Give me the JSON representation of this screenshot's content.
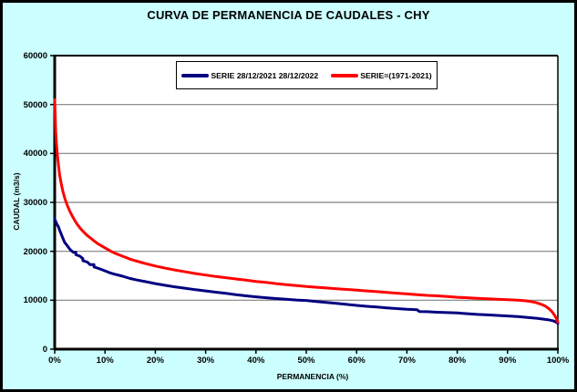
{
  "window": {
    "background_color": "#CCFFFF",
    "border_color": "#000000",
    "plot_background_color": "#FFFFFF",
    "gridline_color": "#808080"
  },
  "title": "CURVA DE PERMANENCIA DE CAUDALES - CHY",
  "legend": {
    "items": [
      {
        "label": "SERIE 28/12/2021 28/12/2022",
        "color": "#000080"
      },
      {
        "label": "SERIE=(1971-2021)",
        "color": "#FF0000"
      }
    ]
  },
  "axes": {
    "x_title": "PERMANENCIA (%)",
    "y_title": "CAUDAL (m3/s)"
  },
  "chart_data": {
    "type": "line",
    "title": "CURVA DE PERMANENCIA DE CAUDALES - CHY",
    "xlabel": "PERMANENCIA (%)",
    "ylabel": "CAUDAL (m3/s)",
    "xlim": [
      0,
      100
    ],
    "ylim": [
      0,
      60000
    ],
    "grid": "horizontal",
    "legend_position": "top-inside",
    "x_ticks": [
      "0%",
      "10%",
      "20%",
      "30%",
      "40%",
      "50%",
      "60%",
      "70%",
      "80%",
      "90%",
      "100%"
    ],
    "x_tick_values": [
      0,
      10,
      20,
      30,
      40,
      50,
      60,
      70,
      80,
      90,
      100
    ],
    "y_ticks": [
      "0",
      "10000",
      "20000",
      "30000",
      "40000",
      "50000",
      "60000"
    ],
    "y_tick_values": [
      0,
      10000,
      20000,
      30000,
      40000,
      50000,
      60000
    ],
    "series": [
      {
        "name": "SERIE 28/12/2021 28/12/2022",
        "color": "#000080",
        "width": 3,
        "points": [
          [
            0,
            26600
          ],
          [
            0.2,
            26100
          ],
          [
            0.4,
            25600
          ],
          [
            0.7,
            25100
          ],
          [
            1,
            24300
          ],
          [
            1.3,
            23500
          ],
          [
            1.7,
            22500
          ],
          [
            2,
            21800
          ],
          [
            2.4,
            21300
          ],
          [
            2.8,
            20700
          ],
          [
            3.2,
            20200
          ],
          [
            3.7,
            19800
          ],
          [
            4.2,
            19800
          ],
          [
            4.2,
            19300
          ],
          [
            5,
            19000
          ],
          [
            5.6,
            18500
          ],
          [
            5.6,
            18100
          ],
          [
            6.5,
            17800
          ],
          [
            7,
            17300
          ],
          [
            7.8,
            17300
          ],
          [
            7.8,
            16800
          ],
          [
            9,
            16400
          ],
          [
            10,
            16000
          ],
          [
            11,
            15600
          ],
          [
            12,
            15300
          ],
          [
            13.5,
            14900
          ],
          [
            15,
            14450
          ],
          [
            16.5,
            14100
          ],
          [
            18,
            13800
          ],
          [
            20,
            13400
          ],
          [
            22,
            13050
          ],
          [
            24,
            12700
          ],
          [
            26,
            12450
          ],
          [
            28,
            12150
          ],
          [
            30,
            11900
          ],
          [
            32,
            11650
          ],
          [
            34,
            11400
          ],
          [
            36,
            11150
          ],
          [
            38,
            10900
          ],
          [
            40,
            10700
          ],
          [
            42,
            10500
          ],
          [
            44,
            10350
          ],
          [
            46,
            10200
          ],
          [
            48,
            10050
          ],
          [
            50,
            9950
          ],
          [
            52,
            9750
          ],
          [
            54,
            9550
          ],
          [
            56,
            9350
          ],
          [
            58,
            9150
          ],
          [
            60,
            8950
          ],
          [
            62,
            8750
          ],
          [
            64,
            8600
          ],
          [
            66,
            8450
          ],
          [
            68,
            8300
          ],
          [
            70,
            8150
          ],
          [
            72,
            8050
          ],
          [
            72.5,
            7700
          ],
          [
            74,
            7650
          ],
          [
            76,
            7550
          ],
          [
            78,
            7480
          ],
          [
            80,
            7400
          ],
          [
            82,
            7250
          ],
          [
            84,
            7100
          ],
          [
            86,
            7000
          ],
          [
            88,
            6900
          ],
          [
            90,
            6780
          ],
          [
            92,
            6650
          ],
          [
            94,
            6470
          ],
          [
            96,
            6280
          ],
          [
            98,
            6020
          ],
          [
            99,
            5820
          ],
          [
            99.6,
            5580
          ],
          [
            100,
            5250
          ]
        ]
      },
      {
        "name": "SERIE=(1971-2021)",
        "color": "#FF0000",
        "width": 3,
        "points": [
          [
            0,
            51000
          ],
          [
            0.1,
            47500
          ],
          [
            0.2,
            44500
          ],
          [
            0.35,
            42000
          ],
          [
            0.5,
            40000
          ],
          [
            0.7,
            38000
          ],
          [
            1,
            35500
          ],
          [
            1.3,
            33800
          ],
          [
            1.6,
            32400
          ],
          [
            2,
            30900
          ],
          [
            2.5,
            29400
          ],
          [
            3,
            28200
          ],
          [
            3.5,
            27200
          ],
          [
            4,
            26300
          ],
          [
            4.5,
            25500
          ],
          [
            5,
            24800
          ],
          [
            5.5,
            24200
          ],
          [
            6,
            23700
          ],
          [
            6.5,
            23200
          ],
          [
            7,
            22800
          ],
          [
            7.5,
            22400
          ],
          [
            8,
            22000
          ],
          [
            8.5,
            21600
          ],
          [
            9,
            21300
          ],
          [
            9.5,
            21000
          ],
          [
            10,
            20700
          ],
          [
            11,
            20100
          ],
          [
            12,
            19600
          ],
          [
            13,
            19200
          ],
          [
            14,
            18800
          ],
          [
            15,
            18400
          ],
          [
            16,
            18100
          ],
          [
            17,
            17800
          ],
          [
            18,
            17500
          ],
          [
            19,
            17250
          ],
          [
            20,
            17000
          ],
          [
            22,
            16550
          ],
          [
            24,
            16150
          ],
          [
            26,
            15800
          ],
          [
            28,
            15450
          ],
          [
            30,
            15150
          ],
          [
            32,
            14850
          ],
          [
            34,
            14600
          ],
          [
            36,
            14350
          ],
          [
            38,
            14100
          ],
          [
            40,
            13850
          ],
          [
            42,
            13650
          ],
          [
            44,
            13400
          ],
          [
            46,
            13200
          ],
          [
            48,
            13000
          ],
          [
            50,
            12800
          ],
          [
            52,
            12650
          ],
          [
            54,
            12500
          ],
          [
            56,
            12350
          ],
          [
            58,
            12200
          ],
          [
            60,
            12050
          ],
          [
            62,
            11900
          ],
          [
            64,
            11750
          ],
          [
            66,
            11600
          ],
          [
            68,
            11450
          ],
          [
            70,
            11300
          ],
          [
            72,
            11150
          ],
          [
            74,
            11000
          ],
          [
            76,
            10900
          ],
          [
            78,
            10750
          ],
          [
            80,
            10600
          ],
          [
            82,
            10500
          ],
          [
            84,
            10400
          ],
          [
            86,
            10300
          ],
          [
            88,
            10200
          ],
          [
            90,
            10100
          ],
          [
            92,
            10000
          ],
          [
            93.5,
            9900
          ],
          [
            94.5,
            9750
          ],
          [
            95.5,
            9550
          ],
          [
            96.5,
            9250
          ],
          [
            97.5,
            8800
          ],
          [
            98.2,
            8300
          ],
          [
            98.8,
            7700
          ],
          [
            99.3,
            7000
          ],
          [
            99.7,
            6300
          ],
          [
            100,
            5500
          ]
        ]
      }
    ]
  }
}
